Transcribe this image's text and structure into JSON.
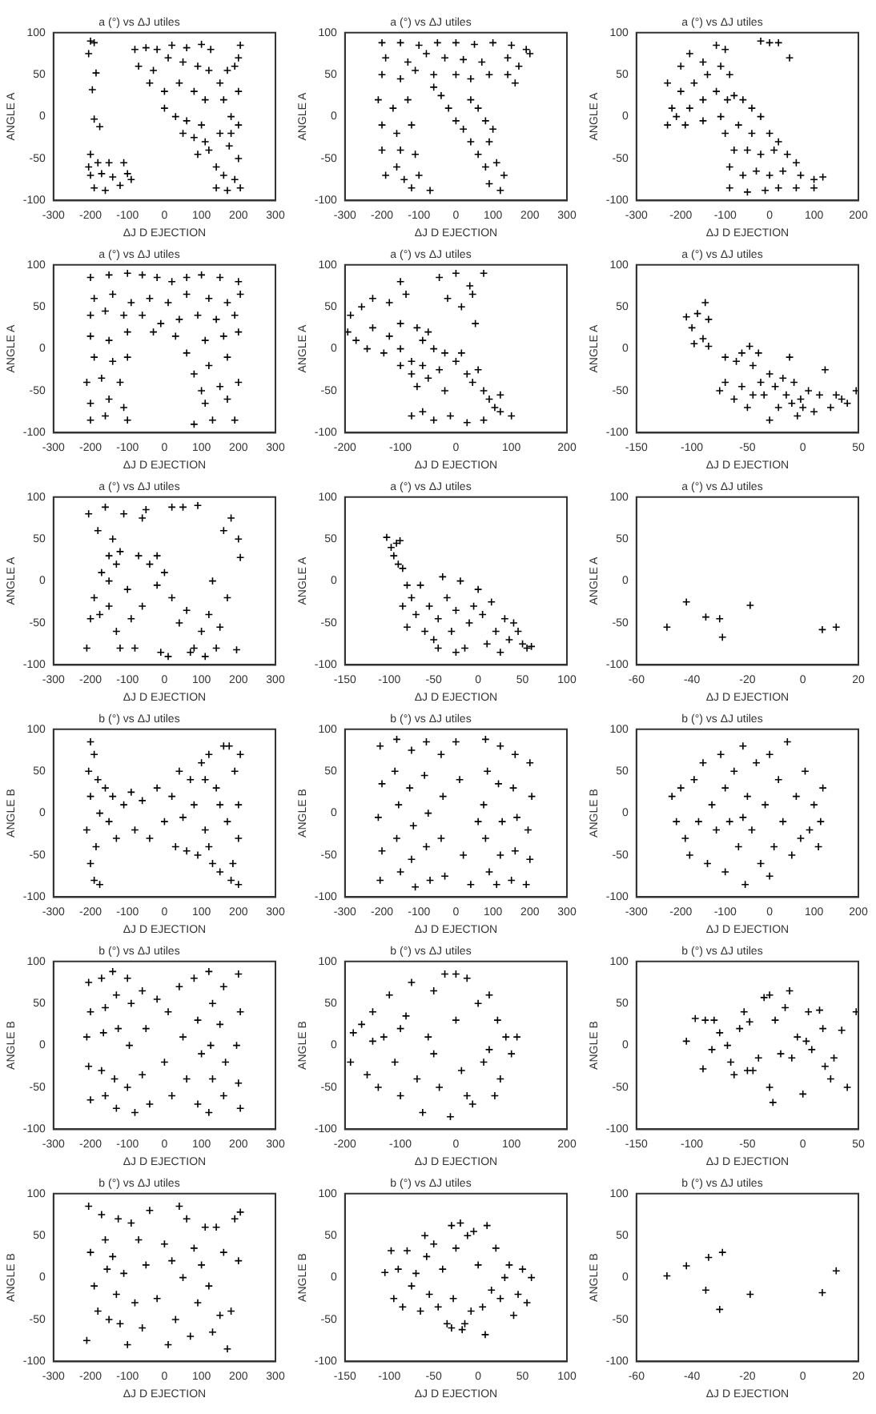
{
  "chart_data": [
    {
      "type": "scatter",
      "title": "a (°) vs ΔJ utiles",
      "xlabel": "ΔJ D EJECTION",
      "ylabel": "ANGLE A",
      "color": "#000000",
      "marker": "cross",
      "xlim": [
        -300,
        300
      ],
      "xticks": [
        -300,
        -200,
        -100,
        0,
        100,
        200,
        300
      ],
      "ylim": [
        -100,
        100
      ],
      "yticks": [
        -100,
        -50,
        0,
        50,
        100
      ],
      "x": [
        -200,
        -190,
        -205,
        -185,
        -195,
        -190,
        -175,
        -200,
        -180,
        -150,
        -110,
        -200,
        -170,
        -140,
        -100,
        -190,
        -160,
        -120,
        -90,
        -205,
        -80,
        -50,
        -20,
        20,
        60,
        100,
        125,
        -70,
        -30,
        10,
        50,
        90,
        120,
        -40,
        0,
        40,
        80,
        110,
        0,
        30,
        60,
        100,
        50,
        80,
        110,
        120,
        90,
        150,
        170,
        190,
        205,
        200,
        160,
        180,
        200,
        150,
        175,
        200,
        140,
        160,
        190,
        140,
        170,
        205,
        200,
        180
      ],
      "values": [
        90,
        88,
        75,
        52,
        32,
        -3,
        -12,
        -45,
        -55,
        -55,
        -55,
        -70,
        -68,
        -72,
        -68,
        -85,
        -88,
        -82,
        -75,
        -60,
        80,
        82,
        80,
        85,
        82,
        86,
        80,
        60,
        55,
        70,
        65,
        60,
        55,
        40,
        30,
        40,
        30,
        20,
        10,
        0,
        -5,
        -10,
        -20,
        -25,
        -30,
        -40,
        -45,
        40,
        55,
        60,
        85,
        70,
        20,
        0,
        -10,
        -20,
        -35,
        -50,
        -60,
        -70,
        -75,
        -85,
        -88,
        -85,
        30,
        -20
      ]
    },
    {
      "type": "scatter",
      "title": "a (°) vs ΔJ utiles",
      "xlabel": "ΔJ D EJECTION",
      "ylabel": "ANGLE A",
      "color": "#000000",
      "marker": "cross",
      "xlim": [
        -300,
        300
      ],
      "xticks": [
        -300,
        -200,
        -100,
        0,
        100,
        200,
        300
      ],
      "ylim": [
        -100,
        100
      ],
      "yticks": [
        -100,
        -50,
        0,
        50,
        100
      ],
      "x": [
        -200,
        -150,
        -100,
        -50,
        0,
        50,
        100,
        150,
        190,
        -190,
        -130,
        -80,
        -30,
        20,
        70,
        140,
        170,
        200,
        -200,
        -150,
        -110,
        -60,
        0,
        40,
        90,
        140,
        160,
        -210,
        -170,
        -130,
        -60,
        -40,
        40,
        60,
        -200,
        -160,
        -120,
        -20,
        0,
        20,
        80,
        -200,
        -150,
        -110,
        40,
        60,
        90,
        -190,
        -140,
        -100,
        -70,
        80,
        110,
        90,
        120,
        130,
        -160,
        -120,
        100
      ],
      "values": [
        88,
        88,
        85,
        88,
        88,
        86,
        88,
        85,
        80,
        70,
        65,
        75,
        70,
        68,
        65,
        70,
        60,
        75,
        50,
        45,
        55,
        50,
        50,
        45,
        50,
        50,
        40,
        20,
        10,
        20,
        35,
        25,
        20,
        10,
        -10,
        -20,
        -10,
        10,
        -5,
        -15,
        -5,
        -40,
        -40,
        -45,
        -30,
        -45,
        -30,
        -70,
        -75,
        -70,
        -88,
        -60,
        -55,
        -80,
        -88,
        -70,
        -60,
        -85,
        -15
      ]
    },
    {
      "type": "scatter",
      "title": "a (°) vs ΔJ utiles",
      "xlabel": "ΔJ D EJECTION",
      "ylabel": "ANGLE A",
      "color": "#000000",
      "marker": "cross",
      "xlim": [
        -300,
        200
      ],
      "xticks": [
        -300,
        -200,
        -100,
        0,
        100,
        200
      ],
      "ylim": [
        -100,
        100
      ],
      "yticks": [
        -100,
        -50,
        0,
        50,
        100
      ],
      "x": [
        -230,
        -220,
        -230,
        -200,
        -180,
        -150,
        -120,
        -100,
        -200,
        -170,
        -140,
        -110,
        -90,
        -210,
        -180,
        -150,
        -120,
        -95,
        -190,
        -150,
        -110,
        -100,
        -80,
        -60,
        -40,
        -20,
        -70,
        -40,
        0,
        20,
        -80,
        -50,
        -20,
        10,
        40,
        60,
        -90,
        -60,
        -30,
        0,
        30,
        70,
        100,
        120,
        -90,
        -50,
        -10,
        20,
        60,
        100,
        -20,
        0,
        20,
        45
      ],
      "values": [
        40,
        10,
        -10,
        60,
        75,
        65,
        85,
        80,
        30,
        40,
        50,
        60,
        50,
        0,
        10,
        20,
        30,
        20,
        -10,
        -5,
        0,
        -20,
        25,
        20,
        10,
        0,
        -10,
        -20,
        -20,
        -30,
        -40,
        -40,
        -45,
        -40,
        -45,
        -55,
        -60,
        -70,
        -65,
        -70,
        -65,
        -70,
        -75,
        -72,
        -85,
        -90,
        -88,
        -85,
        -85,
        -85,
        90,
        88,
        88,
        70
      ]
    },
    {
      "type": "scatter",
      "title": "a (°) vs ΔJ utiles",
      "xlabel": "ΔJ D EJECTION",
      "ylabel": "ANGLE A",
      "color": "#000000",
      "marker": "cross",
      "xlim": [
        -300,
        300
      ],
      "xticks": [
        -300,
        -200,
        -100,
        0,
        100,
        200,
        300
      ],
      "ylim": [
        -100,
        100
      ],
      "yticks": [
        -100,
        -50,
        0,
        50,
        100
      ],
      "x": [
        -200,
        -150,
        -100,
        -60,
        -20,
        20,
        60,
        100,
        150,
        200,
        -190,
        -140,
        -90,
        -40,
        10,
        60,
        120,
        170,
        205,
        -200,
        -160,
        -110,
        -60,
        -10,
        40,
        90,
        140,
        190,
        -200,
        -150,
        -100,
        -30,
        30,
        110,
        160,
        200,
        -190,
        -140,
        -100,
        60,
        120,
        170,
        -210,
        -170,
        -120,
        80,
        100,
        150,
        200,
        -200,
        -150,
        -110,
        110,
        170,
        -200,
        -160,
        -100,
        80,
        130,
        190
      ],
      "values": [
        85,
        88,
        90,
        88,
        85,
        80,
        85,
        88,
        85,
        80,
        60,
        65,
        55,
        60,
        55,
        65,
        60,
        55,
        65,
        40,
        45,
        40,
        40,
        30,
        35,
        40,
        35,
        40,
        15,
        10,
        20,
        20,
        15,
        10,
        15,
        20,
        -10,
        -15,
        -10,
        -5,
        -20,
        -10,
        -40,
        -35,
        -40,
        -30,
        -50,
        -45,
        -40,
        -65,
        -60,
        -70,
        -65,
        -60,
        -85,
        -80,
        -85,
        -90,
        -85,
        -85
      ]
    },
    {
      "type": "scatter",
      "title": "a (°) vs ΔJ utiles",
      "xlabel": "ΔJ D EJECTION",
      "ylabel": "ANGLE A",
      "color": "#000000",
      "marker": "cross",
      "xlim": [
        -200,
        200
      ],
      "xticks": [
        -200,
        -100,
        0,
        100,
        200
      ],
      "ylim": [
        -100,
        100
      ],
      "yticks": [
        -100,
        -50,
        0,
        50,
        100
      ],
      "x": [
        -195,
        -190,
        -170,
        -150,
        -120,
        -100,
        -90,
        -180,
        -150,
        -120,
        -100,
        -70,
        -50,
        -160,
        -130,
        -100,
        -80,
        -60,
        -40,
        -20,
        -100,
        -80,
        -60,
        -30,
        0,
        10,
        -70,
        -50,
        20,
        30,
        40,
        -20,
        50,
        60,
        70,
        80,
        -80,
        -60,
        -40,
        -10,
        20,
        50,
        80,
        100,
        -30,
        0,
        50,
        30,
        10,
        35,
        -15,
        25
      ],
      "values": [
        20,
        40,
        50,
        60,
        55,
        80,
        65,
        10,
        25,
        15,
        30,
        25,
        20,
        0,
        -5,
        0,
        -15,
        10,
        0,
        -5,
        -20,
        -30,
        -20,
        -25,
        -15,
        -5,
        -45,
        -35,
        -30,
        -40,
        -25,
        -50,
        -50,
        -60,
        -70,
        -55,
        -80,
        -75,
        -85,
        -80,
        -88,
        -85,
        -75,
        -80,
        85,
        90,
        90,
        65,
        50,
        30,
        60,
        75
      ]
    },
    {
      "type": "scatter",
      "title": "a (°) vs ΔJ utiles",
      "xlabel": "ΔJ D EJECTION",
      "ylabel": "ANGLE A",
      "color": "#000000",
      "marker": "cross",
      "xlim": [
        -150,
        50
      ],
      "xticks": [
        -150,
        -100,
        -50,
        0,
        50
      ],
      "ylim": [
        -100,
        100
      ],
      "yticks": [
        -100,
        -50,
        0,
        50,
        100
      ],
      "x": [
        -105,
        -100,
        -95,
        -90,
        -88,
        -85,
        -98,
        -85,
        -70,
        -60,
        -55,
        -48,
        -45,
        -40,
        -12,
        -75,
        -70,
        -62,
        -55,
        -50,
        -45,
        -38,
        -35,
        -30,
        -25,
        -22,
        -18,
        -15,
        -10,
        -8,
        -2,
        0,
        5,
        10,
        15,
        20,
        25,
        30,
        35,
        40,
        -30,
        -5,
        48
      ],
      "values": [
        38,
        25,
        42,
        12,
        55,
        35,
        6,
        3,
        -10,
        -15,
        -5,
        3,
        -20,
        -5,
        -10,
        -50,
        -40,
        -60,
        -45,
        -70,
        -55,
        -40,
        -55,
        -30,
        -45,
        -70,
        -35,
        -55,
        -65,
        -40,
        -60,
        -70,
        -50,
        -75,
        -55,
        -25,
        -70,
        -55,
        -60,
        -65,
        -85,
        -80,
        -50
      ]
    },
    {
      "type": "scatter",
      "title": "a (°) vs ΔJ utiles",
      "xlabel": "ΔJ D EJECTION",
      "ylabel": "ANGLE A",
      "color": "#000000",
      "marker": "cross",
      "xlim": [
        -300,
        300
      ],
      "xticks": [
        -300,
        -200,
        -100,
        0,
        100,
        200,
        300
      ],
      "ylim": [
        -100,
        100
      ],
      "yticks": [
        -100,
        -50,
        0,
        50,
        100
      ],
      "x": [
        -210,
        -205,
        -180,
        -160,
        -140,
        -130,
        -150,
        -170,
        -190,
        -200,
        -175,
        -150,
        -130,
        -120,
        -110,
        -100,
        -90,
        -80,
        -70,
        -60,
        -50,
        -40,
        -20,
        0,
        20,
        40,
        60,
        80,
        90,
        100,
        120,
        140,
        160,
        180,
        200,
        205,
        195,
        170,
        130,
        50,
        20,
        -10,
        10,
        70,
        110,
        -60,
        -20,
        150,
        -120,
        -150
      ],
      "values": [
        -80,
        80,
        60,
        88,
        50,
        20,
        30,
        10,
        -20,
        -45,
        -40,
        -30,
        -60,
        -80,
        80,
        -10,
        -45,
        -80,
        30,
        -30,
        85,
        20,
        30,
        10,
        -20,
        -50,
        -35,
        -80,
        90,
        -60,
        -40,
        -80,
        60,
        75,
        50,
        28,
        -82,
        -20,
        0,
        88,
        88,
        -85,
        -90,
        -85,
        -90,
        75,
        -5,
        -55,
        35,
        0
      ]
    },
    {
      "type": "scatter",
      "title": "a (°) vs ΔJ utiles",
      "xlabel": "ΔJ D EJECTION",
      "ylabel": "ANGLE A",
      "color": "#000000",
      "marker": "cross",
      "xlim": [
        -150,
        100
      ],
      "xticks": [
        -150,
        -100,
        -50,
        0,
        50,
        100
      ],
      "ylim": [
        -100,
        100
      ],
      "yticks": [
        -100,
        -50,
        0,
        50,
        100
      ],
      "x": [
        -103,
        -98,
        -95,
        -92,
        -90,
        -85,
        -88,
        -80,
        -75,
        -85,
        -80,
        -70,
        -65,
        -60,
        -55,
        -50,
        -45,
        -40,
        -35,
        -30,
        -25,
        -20,
        -15,
        -10,
        -5,
        0,
        5,
        10,
        15,
        20,
        25,
        30,
        35,
        40,
        45,
        50,
        55,
        60,
        -25,
        -45
      ],
      "values": [
        52,
        40,
        30,
        45,
        20,
        15,
        48,
        -5,
        -20,
        -30,
        -55,
        -40,
        -5,
        -60,
        -30,
        -70,
        -45,
        5,
        -20,
        -60,
        -35,
        0,
        -80,
        -50,
        -30,
        -10,
        -40,
        -75,
        -25,
        -60,
        -85,
        -45,
        -70,
        -50,
        -60,
        -75,
        -80,
        -78,
        -85,
        -80
      ]
    },
    {
      "type": "scatter",
      "title": "a (°) vs ΔJ utiles",
      "xlabel": "ΔJ D EJECTION",
      "ylabel": "ANGLE A",
      "color": "#000000",
      "marker": "cross",
      "xlim": [
        -60,
        20
      ],
      "xticks": [
        -60,
        -40,
        -20,
        0,
        20
      ],
      "ylim": [
        -100,
        100
      ],
      "yticks": [
        -100,
        -50,
        0,
        50,
        100
      ],
      "x": [
        -49,
        -42,
        -35,
        -30,
        -29,
        -19,
        7,
        12
      ],
      "values": [
        -55,
        -25,
        -43,
        -45,
        -67,
        -29,
        -58,
        -55
      ]
    },
    {
      "type": "scatter",
      "title": "b (°) vs ΔJ utiles",
      "xlabel": "ΔJ D EJECTION",
      "ylabel": "ANGLE B",
      "color": "#000000",
      "marker": "cross",
      "xlim": [
        -300,
        300
      ],
      "xticks": [
        -300,
        -200,
        -100,
        0,
        100,
        200,
        300
      ],
      "ylim": [
        -100,
        100
      ],
      "yticks": [
        -100,
        -50,
        0,
        50,
        100
      ],
      "x": [
        -200,
        -190,
        -205,
        -180,
        -200,
        -175,
        -210,
        -185,
        -200,
        -190,
        -175,
        -160,
        -150,
        -140,
        -130,
        -110,
        -90,
        -80,
        -60,
        -40,
        -20,
        0,
        20,
        30,
        40,
        50,
        60,
        70,
        80,
        90,
        100,
        110,
        120,
        130,
        140,
        150,
        160,
        170,
        180,
        190,
        200,
        205,
        185,
        150,
        120,
        200,
        175,
        110,
        200
      ],
      "values": [
        85,
        70,
        50,
        40,
        20,
        0,
        -20,
        -40,
        -60,
        -80,
        -85,
        30,
        -10,
        20,
        -30,
        10,
        25,
        -20,
        15,
        -30,
        30,
        -10,
        20,
        -40,
        50,
        -5,
        -45,
        40,
        10,
        -50,
        60,
        -20,
        70,
        -60,
        30,
        -70,
        80,
        -10,
        -80,
        50,
        -30,
        70,
        -60,
        10,
        -40,
        10,
        80,
        40,
        -85
      ]
    },
    {
      "type": "scatter",
      "title": "b (°) vs ΔJ utiles",
      "xlabel": "ΔJ D EJECTION",
      "ylabel": "ANGLE B",
      "color": "#000000",
      "marker": "cross",
      "xlim": [
        -300,
        300
      ],
      "xticks": [
        -300,
        -200,
        -100,
        0,
        100,
        200,
        300
      ],
      "ylim": [
        -100,
        100
      ],
      "yticks": [
        -100,
        -50,
        0,
        50,
        100
      ],
      "x": [
        -205,
        -200,
        -210,
        -200,
        -205,
        -160,
        -165,
        -155,
        -160,
        -150,
        -120,
        -125,
        -115,
        -120,
        -110,
        -80,
        -85,
        -75,
        -80,
        -70,
        -40,
        -35,
        -40,
        -30,
        0,
        10,
        20,
        40,
        60,
        80,
        85,
        75,
        80,
        90,
        120,
        115,
        125,
        120,
        110,
        160,
        155,
        165,
        160,
        150,
        200,
        205,
        195,
        200,
        190
      ],
      "values": [
        80,
        35,
        -5,
        -45,
        -80,
        88,
        50,
        10,
        -30,
        -70,
        75,
        30,
        -15,
        -55,
        -88,
        85,
        45,
        0,
        -40,
        -80,
        70,
        20,
        -30,
        -75,
        85,
        40,
        -50,
        -85,
        -10,
        88,
        50,
        10,
        -30,
        -70,
        80,
        35,
        -10,
        -50,
        -85,
        70,
        30,
        -5,
        -45,
        -80,
        60,
        20,
        -20,
        -55,
        -85
      ]
    },
    {
      "type": "scatter",
      "title": "b (°) vs ΔJ utiles",
      "xlabel": "ΔJ D EJECTION",
      "ylabel": "ANGLE B",
      "color": "#000000",
      "marker": "cross",
      "xlim": [
        -300,
        200
      ],
      "xticks": [
        -300,
        -200,
        -100,
        0,
        100,
        200
      ],
      "ylim": [
        -100,
        100
      ],
      "yticks": [
        -100,
        -50,
        0,
        50,
        100
      ],
      "x": [
        -220,
        -210,
        -200,
        -190,
        -180,
        -170,
        -150,
        -140,
        -130,
        -120,
        -110,
        -100,
        -100,
        -90,
        -80,
        -70,
        -60,
        -55,
        -50,
        -40,
        -30,
        -20,
        -10,
        0,
        10,
        20,
        30,
        40,
        50,
        60,
        70,
        80,
        90,
        100,
        110,
        120,
        115,
        -160,
        -60,
        0
      ],
      "values": [
        20,
        -10,
        30,
        -30,
        -50,
        40,
        60,
        -60,
        10,
        -20,
        70,
        30,
        -70,
        -10,
        50,
        -40,
        80,
        -85,
        20,
        -20,
        60,
        -60,
        10,
        70,
        -40,
        40,
        -10,
        85,
        -50,
        20,
        -30,
        50,
        -20,
        10,
        -40,
        30,
        -10,
        -10,
        -5,
        -75
      ]
    },
    {
      "type": "scatter",
      "title": "b (°) vs ΔJ utiles",
      "xlabel": "ΔJ D EJECTION",
      "ylabel": "ANGLE B",
      "color": "#000000",
      "marker": "cross",
      "xlim": [
        -300,
        300
      ],
      "xticks": [
        -300,
        -200,
        -100,
        0,
        100,
        200,
        300
      ],
      "ylim": [
        -100,
        100
      ],
      "yticks": [
        -100,
        -50,
        0,
        50,
        100
      ],
      "x": [
        -205,
        -200,
        -210,
        -205,
        -200,
        -170,
        -160,
        -165,
        -170,
        -160,
        -140,
        -130,
        -125,
        -135,
        -130,
        -100,
        -90,
        -95,
        -100,
        -80,
        -60,
        -50,
        -60,
        -40,
        -20,
        0,
        10,
        20,
        40,
        50,
        60,
        80,
        90,
        100,
        90,
        120,
        130,
        125,
        130,
        120,
        160,
        150,
        165,
        160,
        200,
        205,
        195,
        200,
        205
      ],
      "values": [
        75,
        40,
        10,
        -25,
        -65,
        80,
        45,
        15,
        -30,
        -60,
        88,
        60,
        20,
        -40,
        -75,
        80,
        50,
        0,
        -50,
        -80,
        65,
        20,
        -35,
        -70,
        55,
        -20,
        40,
        -60,
        70,
        10,
        -40,
        80,
        30,
        -10,
        -70,
        88,
        50,
        0,
        -40,
        -80,
        70,
        25,
        -20,
        -60,
        85,
        40,
        0,
        -45,
        -75
      ]
    },
    {
      "type": "scatter",
      "title": "b (°) vs ΔJ utiles",
      "xlabel": "ΔJ D EJECTION",
      "ylabel": "ANGLE B",
      "color": "#000000",
      "marker": "cross",
      "xlim": [
        -200,
        200
      ],
      "xticks": [
        -200,
        -100,
        0,
        100,
        200
      ],
      "ylim": [
        -100,
        100
      ],
      "yticks": [
        -100,
        -50,
        0,
        50,
        100
      ],
      "x": [
        -190,
        -185,
        -170,
        -160,
        -150,
        -140,
        -130,
        -120,
        -110,
        -100,
        -90,
        -80,
        -70,
        -60,
        -50,
        -40,
        -30,
        -20,
        -10,
        0,
        10,
        20,
        30,
        40,
        50,
        60,
        70,
        75,
        80,
        90,
        100,
        110,
        -150,
        -100,
        60,
        -40,
        20,
        0
      ],
      "values": [
        -20,
        15,
        25,
        -35,
        40,
        -50,
        10,
        60,
        -20,
        -60,
        35,
        75,
        -40,
        -80,
        10,
        65,
        -50,
        85,
        -85,
        30,
        -30,
        80,
        -70,
        50,
        -20,
        60,
        -60,
        30,
        -40,
        10,
        -10,
        10,
        5,
        20,
        -5,
        -10,
        -60,
        85
      ]
    },
    {
      "type": "scatter",
      "title": "b (°) vs ΔJ utiles",
      "xlabel": "ΔJ D EJECTION",
      "ylabel": "ANGLE B",
      "color": "#000000",
      "marker": "cross",
      "xlim": [
        -150,
        50
      ],
      "xticks": [
        -150,
        -100,
        -50,
        0,
        50
      ],
      "ylim": [
        -100,
        100
      ],
      "yticks": [
        -100,
        -50,
        0,
        50,
        100
      ],
      "x": [
        -105,
        -97,
        -90,
        -88,
        -82,
        -75,
        -68,
        -62,
        -57,
        -53,
        -48,
        -45,
        -40,
        -35,
        -30,
        -30,
        -27,
        -25,
        -20,
        -16,
        -12,
        -10,
        -5,
        0,
        3,
        5,
        8,
        15,
        18,
        20,
        25,
        28,
        35,
        40,
        48,
        -50,
        -65,
        -80
      ],
      "values": [
        5,
        32,
        -28,
        30,
        -5,
        15,
        0,
        -35,
        20,
        40,
        28,
        -30,
        -15,
        57,
        60,
        -50,
        -68,
        30,
        -10,
        45,
        65,
        -15,
        10,
        -58,
        5,
        40,
        -5,
        42,
        20,
        -25,
        -40,
        -15,
        18,
        -50,
        40,
        -30,
        -20,
        30
      ]
    },
    {
      "type": "scatter",
      "title": "b (°) vs ΔJ utiles",
      "xlabel": "ΔJ D EJECTION",
      "ylabel": "ANGLE B",
      "color": "#000000",
      "marker": "cross",
      "xlim": [
        -300,
        300
      ],
      "xticks": [
        -300,
        -200,
        -100,
        0,
        100,
        200,
        300
      ],
      "ylim": [
        -100,
        100
      ],
      "yticks": [
        -100,
        -50,
        0,
        50,
        100
      ],
      "x": [
        -210,
        -205,
        -200,
        -190,
        -180,
        -170,
        -160,
        -155,
        -150,
        -140,
        -130,
        -125,
        -120,
        -110,
        -100,
        -90,
        -80,
        -70,
        -60,
        -50,
        -40,
        -20,
        0,
        10,
        20,
        30,
        40,
        50,
        60,
        70,
        80,
        90,
        100,
        120,
        140,
        150,
        160,
        170,
        180,
        190,
        200,
        205,
        130,
        110
      ],
      "values": [
        -75,
        85,
        30,
        -10,
        -40,
        75,
        45,
        10,
        -50,
        25,
        -20,
        70,
        -55,
        5,
        -80,
        65,
        -30,
        45,
        -60,
        15,
        80,
        -25,
        40,
        -80,
        20,
        -50,
        85,
        0,
        70,
        -70,
        35,
        -30,
        15,
        -10,
        60,
        -45,
        30,
        -85,
        -40,
        70,
        20,
        78,
        -65,
        60
      ]
    },
    {
      "type": "scatter",
      "title": "b (°) vs ΔJ utiles",
      "xlabel": "ΔJ D EJECTION",
      "ylabel": "ANGLE B",
      "color": "#000000",
      "marker": "cross",
      "xlim": [
        -150,
        100
      ],
      "xticks": [
        -150,
        -100,
        -50,
        0,
        50,
        100
      ],
      "ylim": [
        -100,
        100
      ],
      "yticks": [
        -100,
        -50,
        0,
        50,
        100
      ],
      "x": [
        -105,
        -98,
        -95,
        -90,
        -85,
        -80,
        -75,
        -70,
        -65,
        -60,
        -58,
        -55,
        -50,
        -45,
        -40,
        -35,
        -30,
        -28,
        -25,
        -20,
        -15,
        -12,
        -8,
        -5,
        0,
        5,
        8,
        10,
        15,
        20,
        25,
        30,
        35,
        40,
        45,
        50,
        55,
        60,
        -30,
        -18
      ],
      "values": [
        6,
        32,
        -25,
        10,
        -35,
        32,
        -10,
        5,
        -40,
        50,
        25,
        -20,
        40,
        -35,
        10,
        -55,
        62,
        -25,
        35,
        65,
        -55,
        50,
        -40,
        55,
        15,
        -35,
        -68,
        62,
        -15,
        35,
        -25,
        0,
        15,
        -45,
        -20,
        10,
        -30,
        0,
        -60,
        -62
      ]
    },
    {
      "type": "scatter",
      "title": "b (°) vs ΔJ utiles",
      "xlabel": "ΔJ D EJECTION",
      "ylabel": "ANGLE B",
      "color": "#000000",
      "marker": "cross",
      "xlim": [
        -60,
        20
      ],
      "xticks": [
        -60,
        -40,
        -20,
        0,
        20
      ],
      "ylim": [
        -100,
        100
      ],
      "yticks": [
        -100,
        -50,
        0,
        50,
        100
      ],
      "x": [
        -49,
        -42,
        -34,
        -29,
        -35,
        -30,
        -19,
        7,
        12
      ],
      "values": [
        2,
        14,
        24,
        30,
        -15,
        -38,
        -20,
        -18,
        8
      ]
    }
  ]
}
